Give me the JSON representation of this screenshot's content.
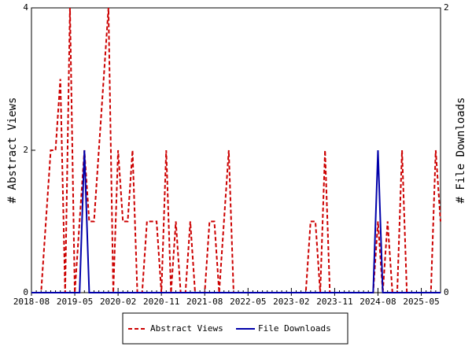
{
  "chart_data": {
    "type": "line",
    "y_label": "# Abstract Views",
    "y2_label": "# File Downloads",
    "categories": [
      "2018-08",
      null,
      null,
      null,
      null,
      null,
      null,
      null,
      null,
      "2019-05",
      null,
      null,
      null,
      null,
      null,
      null,
      null,
      null,
      "2020-02",
      null,
      null,
      null,
      null,
      null,
      null,
      null,
      null,
      "2020-11",
      null,
      null,
      null,
      null,
      null,
      null,
      null,
      null,
      "2021-08",
      null,
      null,
      null,
      null,
      null,
      null,
      null,
      null,
      "2022-05",
      null,
      null,
      null,
      null,
      null,
      null,
      null,
      null,
      "2023-02",
      null,
      null,
      null,
      null,
      null,
      null,
      null,
      null,
      "2023-11",
      null,
      null,
      null,
      null,
      null,
      null,
      null,
      null,
      "2024-08",
      null,
      null,
      null,
      null,
      null,
      null,
      null,
      null,
      "2025-05",
      null,
      null,
      null,
      null
    ],
    "series": [
      {
        "name": "Abstract Views",
        "color": "#cc0000",
        "dashed": true,
        "axis": "y",
        "values": [
          0,
          0,
          0,
          1,
          2,
          2,
          3,
          0,
          4,
          0,
          1,
          2,
          1,
          1,
          2,
          3,
          4,
          0,
          2,
          1,
          1,
          2,
          0,
          0,
          1,
          1,
          1,
          0,
          2,
          0,
          1,
          0,
          0,
          1,
          0,
          0,
          0,
          1,
          1,
          0,
          1,
          2,
          0,
          0,
          0,
          0,
          0,
          0,
          0,
          0,
          0,
          0,
          0,
          0,
          0,
          0,
          0,
          0,
          1,
          1,
          0,
          2,
          0,
          0,
          0,
          0,
          0,
          0,
          0,
          0,
          0,
          0,
          1,
          0,
          1,
          0,
          0,
          2,
          0,
          0,
          0,
          0,
          0,
          0,
          2,
          1
        ]
      },
      {
        "name": "File Downloads",
        "color": "#0000aa",
        "dashed": false,
        "axis": "y2",
        "values": [
          0,
          0,
          0,
          0,
          0,
          0,
          0,
          0,
          0,
          0,
          0,
          1,
          0,
          0,
          0,
          0,
          0,
          0,
          0,
          0,
          0,
          0,
          0,
          0,
          0,
          0,
          0,
          0,
          0,
          0,
          0,
          0,
          0,
          0,
          0,
          0,
          0,
          0,
          0,
          0,
          0,
          0,
          0,
          0,
          0,
          0,
          0,
          0,
          0,
          0,
          0,
          0,
          0,
          0,
          0,
          0,
          0,
          0,
          0,
          0,
          0,
          0,
          0,
          0,
          0,
          0,
          0,
          0,
          0,
          0,
          0,
          0,
          1,
          0,
          0,
          0,
          0,
          0,
          0,
          0,
          0,
          0,
          0,
          0,
          0,
          0
        ]
      }
    ],
    "ylim": [
      0,
      4
    ],
    "yticks": [
      0,
      2,
      4
    ],
    "y2lim": [
      0,
      2
    ],
    "y2ticks": [
      0,
      2
    ],
    "grid": false
  }
}
